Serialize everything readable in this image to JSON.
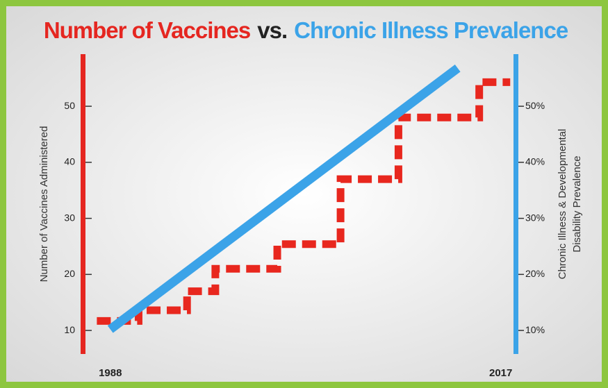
{
  "chart_data": {
    "type": "line",
    "title": [
      "Number of Vaccines",
      "vs.",
      "Chronic Illness Prevalence"
    ],
    "title_colors": [
      "#e52620",
      "#222222",
      "#3ba3e8"
    ],
    "ylabel": "Number of Vaccines Administered",
    "y2label": [
      "Chronic Illness & Developmental",
      "Disability Prevalence"
    ],
    "xlim": [
      1986,
      2018.1
    ],
    "xticks": [
      1988,
      2017
    ],
    "ylim": [
      5.8,
      59.3
    ],
    "yticks": [
      10,
      20,
      30,
      40,
      50
    ],
    "y2lim": [
      5.8,
      59.3
    ],
    "y2ticks": [
      {
        "value": 10,
        "label": "10%"
      },
      {
        "value": 20,
        "label": "20%"
      },
      {
        "value": 30,
        "label": "30%"
      },
      {
        "value": 40,
        "label": "40%"
      },
      {
        "value": 50,
        "label": "50%"
      }
    ],
    "yaxis_color": "#e52620",
    "y2axis_color": "#3ba3e8",
    "series": [
      {
        "color": "#e8271e",
        "dashed": true,
        "axis": "y",
        "x": [
          1987,
          1990.1,
          1990.1,
          1993.7,
          1993.7,
          1995.8,
          1995.8,
          2000.4,
          2000.4,
          2005.1,
          2005.1,
          2009.4,
          2009.4,
          2015.4,
          2015.4,
          2017.7
        ],
        "values": [
          11.7,
          11.7,
          13.6,
          13.6,
          17,
          17,
          21,
          21,
          25.4,
          25.4,
          37,
          37,
          48,
          48,
          54.3,
          54.3
        ]
      },
      {
        "color": "#3ba3e8",
        "dashed": false,
        "axis": "y2",
        "x": [
          1988,
          2013.8
        ],
        "values": [
          10.2,
          56.8
        ]
      }
    ]
  }
}
